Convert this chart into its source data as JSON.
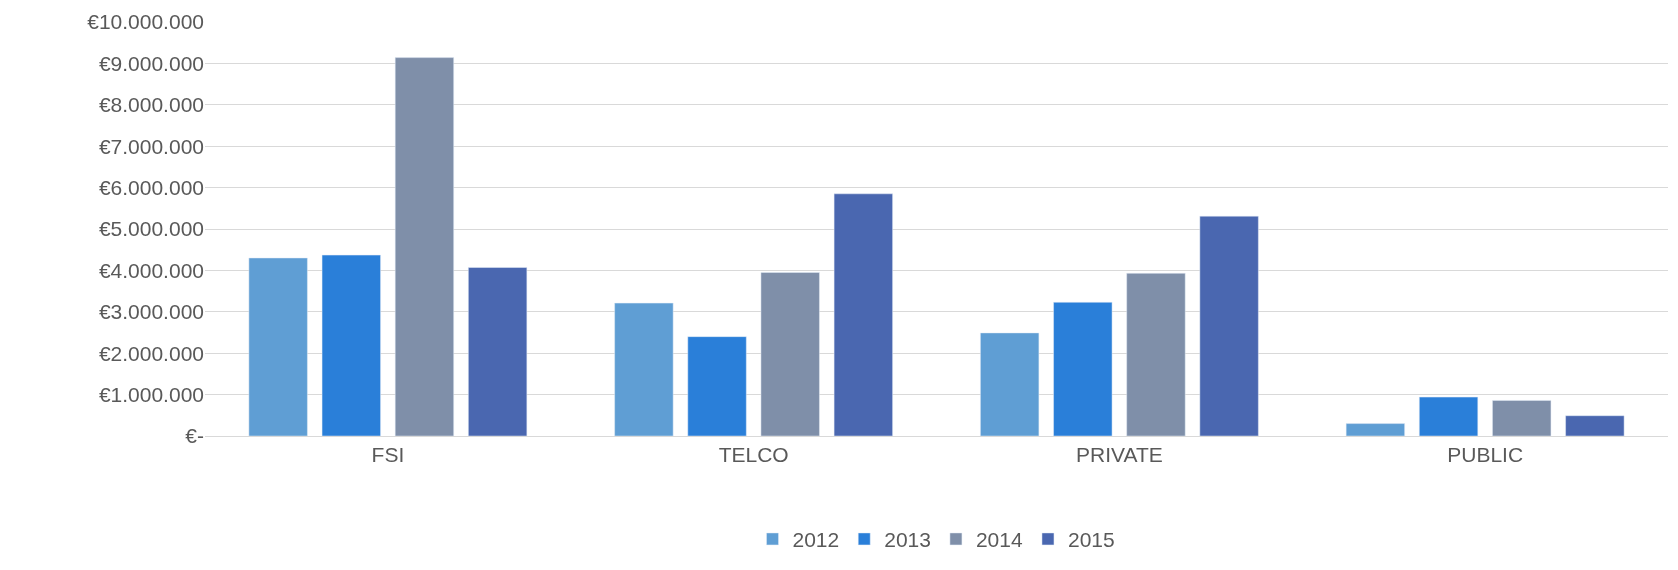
{
  "chart_data": {
    "type": "bar",
    "categories": [
      "FSI",
      "TELCO",
      "PRIVATE",
      "PUBLIC"
    ],
    "series": [
      {
        "name": "2012",
        "color": "#5f9ed4",
        "values": [
          4300000,
          3210000,
          2490000,
          300000
        ]
      },
      {
        "name": "2013",
        "color": "#2a7fd9",
        "values": [
          4370000,
          2400000,
          3230000,
          940000
        ]
      },
      {
        "name": "2014",
        "color": "#7f8fa9",
        "values": [
          9140000,
          3950000,
          3930000,
          860000
        ]
      },
      {
        "name": "2015",
        "color": "#4a67b0",
        "values": [
          4070000,
          5850000,
          5310000,
          490000
        ]
      }
    ],
    "ylim": [
      0,
      10000000
    ],
    "yticks": [
      {
        "value": 0,
        "label": "€-"
      },
      {
        "value": 1000000,
        "label": "€1.000.000"
      },
      {
        "value": 2000000,
        "label": "€2.000.000"
      },
      {
        "value": 3000000,
        "label": "€3.000.000"
      },
      {
        "value": 4000000,
        "label": "€4.000.000"
      },
      {
        "value": 5000000,
        "label": "€5.000.000"
      },
      {
        "value": 6000000,
        "label": "€6.000.000"
      },
      {
        "value": 7000000,
        "label": "€7.000.000"
      },
      {
        "value": 8000000,
        "label": "€8.000.000"
      },
      {
        "value": 9000000,
        "label": "€9.000.000"
      },
      {
        "value": 10000000,
        "label": "€10.000.000"
      }
    ],
    "grid": "y",
    "legend": "bottom"
  }
}
